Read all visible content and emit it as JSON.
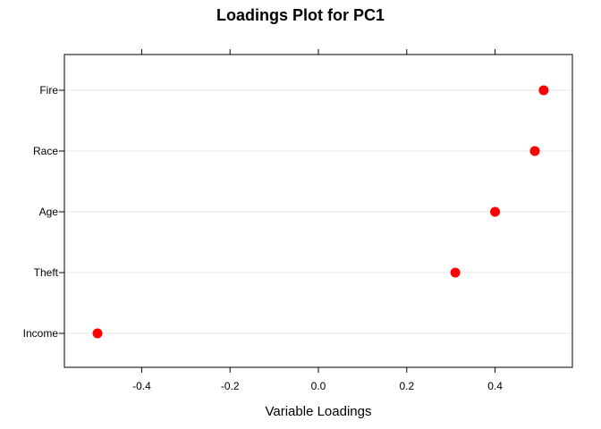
{
  "chart_data": {
    "type": "scatter",
    "title": "Loadings Plot for PC1",
    "xlabel": "Variable Loadings",
    "ylabel": "",
    "categories": [
      "Income",
      "Theft",
      "Age",
      "Race",
      "Fire"
    ],
    "values": [
      -0.5,
      0.31,
      0.4,
      0.49,
      0.51
    ],
    "xlim": [
      -0.575,
      0.575
    ],
    "xticks": [
      -0.4,
      -0.2,
      0.0,
      0.2,
      0.4
    ],
    "xtick_labels": [
      "-0.4",
      "-0.2",
      "0.0",
      "0.2",
      "0.4"
    ],
    "grid": "horizontal",
    "legend": "none",
    "point_color": "#ff0000",
    "grid_color": "#e6e6e6"
  }
}
